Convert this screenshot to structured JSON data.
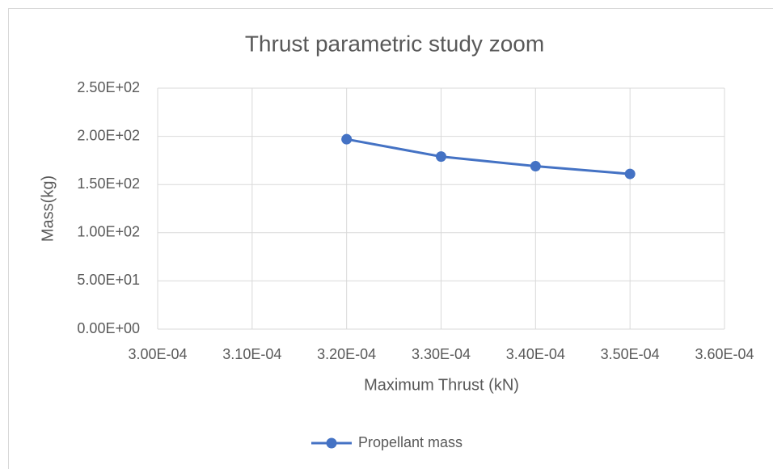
{
  "chart_data": {
    "type": "line",
    "title": "Thrust parametric study zoom",
    "x_label": "Maximum Thrust (kN)",
    "y_label": "Mass(kg)",
    "x": [
      0.00032,
      0.00033,
      0.00034,
      0.00035
    ],
    "series": [
      {
        "name": "Propellant mass",
        "color": "#4472c4",
        "values": [
          197,
          179,
          169,
          161
        ]
      }
    ],
    "xlim": [
      0.0003,
      0.00036
    ],
    "ylim": [
      0,
      250
    ],
    "xticks": [
      {
        "value": 0.0003,
        "label": "3.00E-04"
      },
      {
        "value": 0.00031,
        "label": "3.10E-04"
      },
      {
        "value": 0.00032,
        "label": "3.20E-04"
      },
      {
        "value": 0.00033,
        "label": "3.30E-04"
      },
      {
        "value": 0.00034,
        "label": "3.40E-04"
      },
      {
        "value": 0.00035,
        "label": "3.50E-04"
      },
      {
        "value": 0.00036,
        "label": "3.60E-04"
      }
    ],
    "yticks": [
      {
        "value": 0,
        "label": "0.00E+00"
      },
      {
        "value": 50,
        "label": "5.00E+01"
      },
      {
        "value": 100,
        "label": "1.00E+02"
      },
      {
        "value": 150,
        "label": "1.50E+02"
      },
      {
        "value": 200,
        "label": "2.00E+02"
      },
      {
        "value": 250,
        "label": "2.50E+02"
      }
    ],
    "grid": true,
    "legend": "bottom"
  }
}
